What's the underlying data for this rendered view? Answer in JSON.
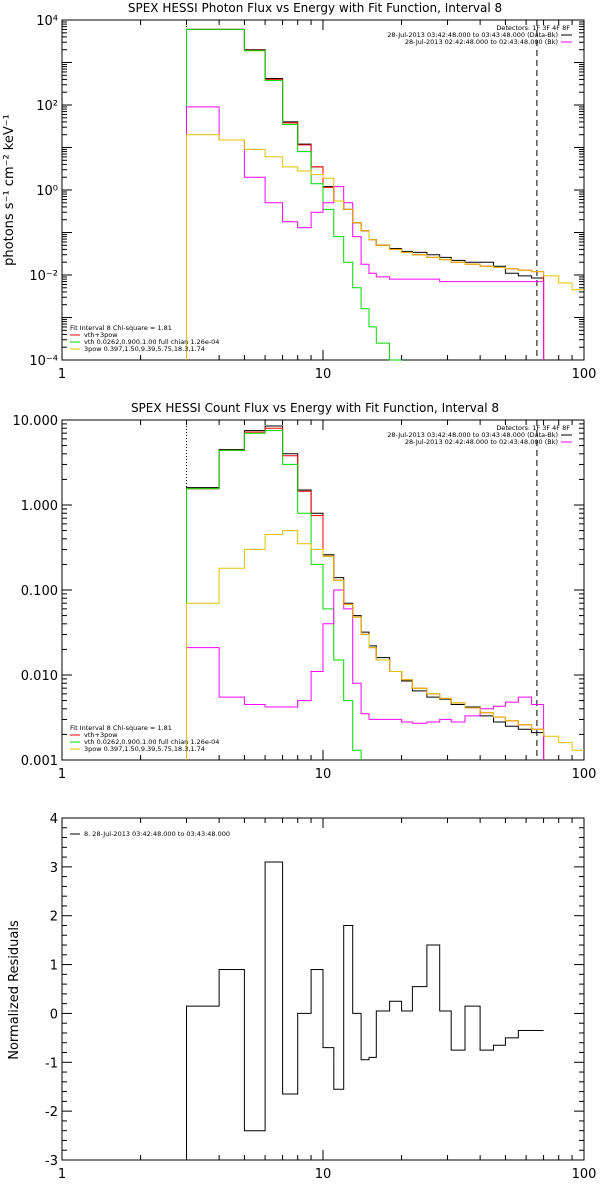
{
  "colors": {
    "black": "#000000",
    "red": "#ff0000",
    "green": "#00d800",
    "magenta": "#ff00ff",
    "yellow": "#e0c000"
  },
  "chart_data": [
    {
      "type": "line",
      "title": "SPEX HESSI Photon Flux vs Energy with Fit Function, Interval 8",
      "ylabel": "photons s⁻¹ cm⁻² keV⁻¹",
      "xscale": "log",
      "yscale": "log",
      "xlim": [
        1,
        100
      ],
      "ylim": [
        0.0001,
        10000
      ],
      "ytick_labels": [
        "10⁻⁴",
        "10⁻²",
        "10⁰",
        "10²",
        "10⁴"
      ],
      "xtick_labels": [
        "1",
        "10",
        "100"
      ],
      "info_top_right": [
        "Detectors: 1F 3F 4F 8F",
        "28-Jul-2013 03:42:48.000 to 03:43:48.000 (Data-Bk)",
        "28-Jul-2013 02:42:48.000 to 02:43:48.000 (Bk)"
      ],
      "info_bottom_left": [
        "Fit Interval 8   Chi-square = 1.81",
        "vth+3pow",
        "vth 0.0262,0.900,1.00  full chian 1.26e-04",
        "3pow 0.397,1.50,9.39,5.75,18.3,1.74"
      ],
      "vline_dotted": 3.0,
      "vline_dashed": 66.0,
      "edges": [
        3,
        4,
        5,
        6,
        7,
        8,
        9,
        10,
        11,
        12,
        13,
        14,
        15,
        16,
        18,
        20,
        22,
        25,
        28,
        31,
        35,
        40,
        45,
        50,
        56,
        63,
        70,
        80,
        90,
        100
      ],
      "series": [
        {
          "name": "Data-Bk",
          "color": "black",
          "values": [
            6000,
            6000,
            2000,
            420,
            40,
            12,
            3.5,
            1.2,
            0.55,
            0.35,
            0.17,
            0.11,
            0.068,
            0.05,
            0.042,
            0.036,
            0.034,
            0.03,
            0.026,
            0.022,
            0.02,
            0.02,
            0.016,
            0.011,
            0.0095,
            0.0085,
            null,
            null,
            null
          ]
        },
        {
          "name": "vth+3pow",
          "color": "red",
          "values": [
            6000,
            6000,
            1950,
            400,
            38,
            11.5,
            3.5,
            1.15,
            0.55,
            0.35,
            0.17,
            0.11,
            0.068,
            0.05,
            0.04,
            0.034,
            0.03,
            0.026,
            0.023,
            0.02,
            0.018,
            0.016,
            0.015,
            0.014,
            0.013,
            0.012,
            null,
            null,
            null
          ]
        },
        {
          "name": "vth",
          "color": "green",
          "values": [
            6000,
            6000,
            1900,
            380,
            35,
            8,
            1.4,
            0.35,
            0.08,
            0.02,
            0.005,
            0.0016,
            0.0006,
            0.00025,
            0.0001,
            null,
            null,
            null,
            null,
            null,
            null,
            null,
            null,
            null,
            null,
            null,
            null,
            null,
            null
          ]
        },
        {
          "name": "Bk",
          "color": "magenta",
          "values": [
            90,
            15,
            2.0,
            0.5,
            0.18,
            0.13,
            0.3,
            0.5,
            1.2,
            0.5,
            0.08,
            0.018,
            0.011,
            0.009,
            0.008,
            0.008,
            0.008,
            0.008,
            0.007,
            0.007,
            0.007,
            0.007,
            0.007,
            0.007,
            0.007,
            0.007,
            null,
            null,
            null
          ]
        },
        {
          "name": "3pow",
          "color": "yellow",
          "values": [
            20,
            15,
            9,
            6,
            3.5,
            2.8,
            2.3,
            1.9,
            0.55,
            0.35,
            0.17,
            0.11,
            0.068,
            0.05,
            0.04,
            0.034,
            0.03,
            0.026,
            0.023,
            0.02,
            0.018,
            0.016,
            0.015,
            0.014,
            0.013,
            0.012,
            0.0095,
            0.0065,
            0.0045
          ]
        }
      ]
    },
    {
      "type": "line",
      "title": "SPEX HESSI Count Flux vs Energy with Fit Function, Interval 8",
      "xscale": "log",
      "yscale": "log",
      "xlim": [
        1,
        100
      ],
      "ylim": [
        0.001,
        10
      ],
      "ytick_labels": [
        "0.001",
        "0.010",
        "0.100",
        "1.000",
        "10.000"
      ],
      "xtick_labels": [
        "1",
        "10",
        "100"
      ],
      "info_top_right": [
        "Detectors: 1F 3F 4F 8F",
        "28-Jul-2013 03:42:48.000 to 03:43:48.000 (Data-Bk)",
        "28-Jul-2013 02:42:48.000 to 02:43:48.000 (Bk)"
      ],
      "info_bottom_left": [
        "Fit Interval 8   Chi-square = 1.81",
        "vth+3pow",
        "vth 0.0262,0.900,1.00  full chian 1.26e-04",
        "3pow 0.397,1.50,9.39,5.75,18.3,1.74"
      ],
      "vline_dotted": 3.0,
      "vline_dashed": 66.0,
      "edges": [
        3,
        4,
        5,
        6,
        7,
        8,
        9,
        10,
        11,
        12,
        13,
        14,
        15,
        16,
        18,
        20,
        22,
        25,
        28,
        31,
        35,
        40,
        45,
        50,
        56,
        63,
        70,
        80,
        90,
        100
      ],
      "series": [
        {
          "name": "Data-Bk",
          "color": "black",
          "values": [
            1.6,
            4.5,
            7.5,
            8.5,
            4.0,
            1.5,
            0.8,
            0.26,
            0.14,
            0.07,
            0.05,
            0.032,
            0.022,
            0.016,
            0.011,
            0.0085,
            0.0065,
            0.0055,
            0.0052,
            0.0045,
            0.0042,
            0.0033,
            0.0028,
            0.0025,
            0.0023,
            0.0021,
            null,
            null,
            null
          ]
        },
        {
          "name": "vth+3pow",
          "color": "red",
          "values": [
            1.55,
            4.4,
            7.2,
            8.0,
            3.8,
            1.45,
            0.75,
            0.25,
            0.13,
            0.068,
            0.048,
            0.03,
            0.021,
            0.015,
            0.011,
            0.0088,
            0.007,
            0.006,
            0.0053,
            0.0047,
            0.0041,
            0.0036,
            0.0032,
            0.0029,
            0.0026,
            0.0023,
            null,
            null,
            null
          ]
        },
        {
          "name": "vth",
          "color": "green",
          "values": [
            1.55,
            4.4,
            7.0,
            7.5,
            3.0,
            0.8,
            0.2,
            0.06,
            0.015,
            0.005,
            0.0013,
            null,
            null,
            null,
            null,
            null,
            null,
            null,
            null,
            null,
            null,
            null,
            null,
            null,
            null,
            null,
            null,
            null,
            null
          ]
        },
        {
          "name": "Bk",
          "color": "magenta",
          "values": [
            0.021,
            0.0055,
            0.0045,
            0.0042,
            0.0042,
            0.005,
            0.011,
            0.04,
            0.1,
            0.06,
            0.008,
            0.0035,
            0.003,
            0.003,
            0.003,
            0.0028,
            0.0027,
            0.0028,
            0.003,
            0.0028,
            0.0033,
            0.004,
            0.0043,
            0.0048,
            0.0055,
            0.0045,
            null,
            null,
            null
          ]
        },
        {
          "name": "3pow",
          "color": "yellow",
          "values": [
            0.07,
            0.18,
            0.3,
            0.45,
            0.5,
            0.35,
            0.3,
            0.25,
            0.13,
            0.068,
            0.048,
            0.03,
            0.021,
            0.015,
            0.011,
            0.0088,
            0.007,
            0.006,
            0.0053,
            0.0047,
            0.0041,
            0.0036,
            0.0032,
            0.0029,
            0.0026,
            0.0023,
            0.0019,
            0.0016,
            0.0013
          ]
        }
      ]
    },
    {
      "type": "line",
      "ylabel": "Normalized Residuals",
      "xscale": "log",
      "xlim": [
        1,
        100
      ],
      "ylim": [
        -3,
        4
      ],
      "ytick_labels": [
        "-3",
        "-2",
        "-1",
        "0",
        "1",
        "2",
        "3",
        "4"
      ],
      "xtick_labels": [
        "1",
        "10",
        "100"
      ],
      "legend": "8. 28-Jul-2013 03:42:48.000 to 03:43:48.000",
      "edges": [
        3,
        4,
        5,
        6,
        7,
        8,
        9,
        10,
        11,
        12,
        13,
        14,
        15,
        16,
        18,
        20,
        22,
        25,
        28,
        31,
        35,
        40,
        45,
        50,
        56,
        63,
        70
      ],
      "series": [
        {
          "name": "8. 28-Jul-2013 03:42:48.000 to 03:43:48.000",
          "color": "black",
          "values": [
            0.15,
            0.9,
            -2.4,
            3.1,
            -1.65,
            0.0,
            0.9,
            -0.7,
            -1.55,
            1.8,
            0.0,
            -0.95,
            -0.9,
            0.05,
            0.25,
            0.05,
            0.55,
            1.4,
            0.05,
            -0.75,
            0.15,
            -0.75,
            -0.65,
            -0.5,
            -0.35,
            -0.35
          ]
        }
      ]
    }
  ]
}
